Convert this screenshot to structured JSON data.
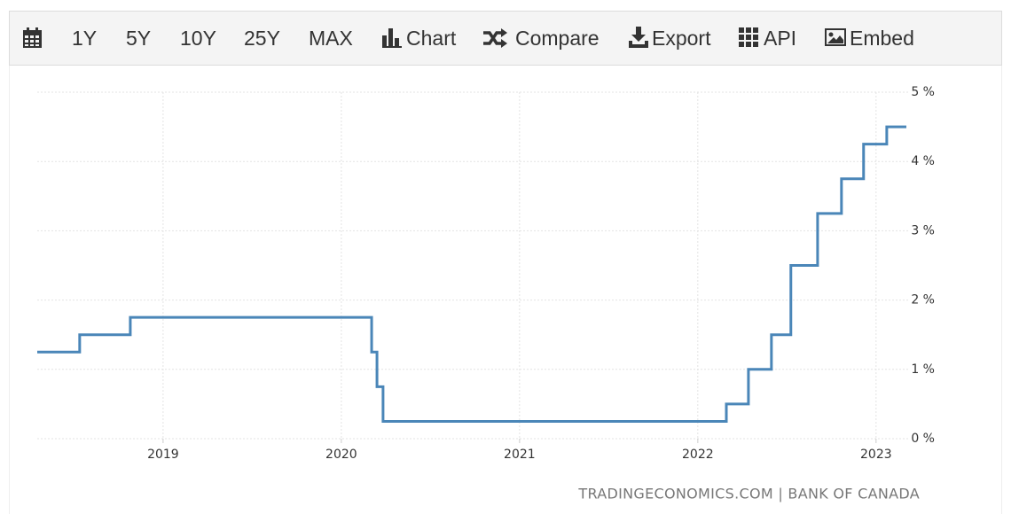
{
  "toolbar": {
    "items": [
      "1Y",
      "5Y",
      "10Y",
      "25Y",
      "MAX",
      "Chart",
      "Compare",
      "Export",
      "API",
      "Embed"
    ]
  },
  "chart_data": {
    "type": "line",
    "source": "TRADINGECONOMICS.COM | BANK OF CANADA",
    "x": [
      2018.294,
      2018.532,
      2018.532,
      2018.816,
      2018.816,
      2020.17,
      2020.17,
      2020.2,
      2020.2,
      2020.234,
      2020.234,
      2022.16,
      2022.16,
      2022.284,
      2022.284,
      2022.413,
      2022.413,
      2022.522,
      2022.522,
      2022.672,
      2022.672,
      2022.806,
      2022.806,
      2022.93,
      2022.93,
      2023.06,
      2023.06,
      2023.17
    ],
    "series": [
      {
        "color": "#4a86b8",
        "values": [
          1.25,
          1.25,
          1.5,
          1.5,
          1.75,
          1.75,
          1.25,
          1.25,
          0.75,
          0.75,
          0.25,
          0.25,
          0.5,
          0.5,
          1.0,
          1.0,
          1.5,
          1.5,
          2.5,
          2.5,
          3.25,
          3.25,
          3.75,
          3.75,
          4.25,
          4.25,
          4.5,
          4.5
        ]
      }
    ],
    "xlim": [
      2018.294,
      2023.18
    ],
    "xticks": [
      2019,
      2020,
      2021,
      2022,
      2023
    ],
    "ylim": [
      0,
      5
    ],
    "yticks": [
      {
        "value": 0,
        "label": "0 %"
      },
      {
        "value": 1,
        "label": "1 %"
      },
      {
        "value": 2,
        "label": "2 %"
      },
      {
        "value": 3,
        "label": "3 %"
      },
      {
        "value": 4,
        "label": "4 %"
      },
      {
        "value": 5,
        "label": "5 %"
      }
    ],
    "grid": true
  }
}
